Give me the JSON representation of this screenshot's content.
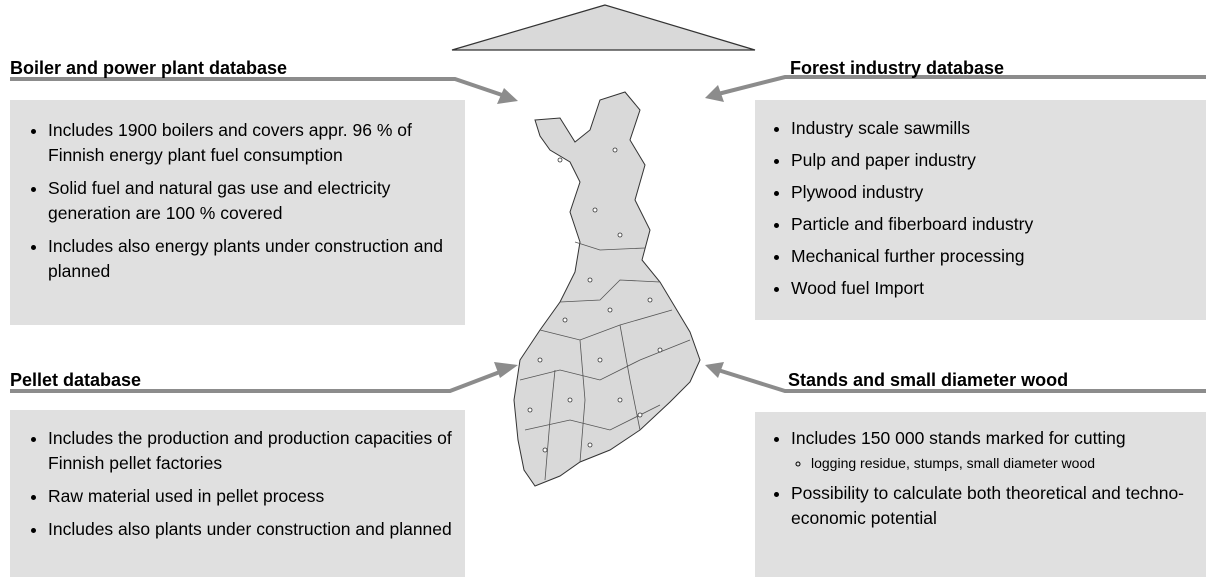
{
  "panels": [
    {
      "title": "Boiler and power plant database",
      "items": [
        {
          "text": "Includes 1900 boilers and covers appr. 96 % of Finnish energy plant fuel consumption"
        },
        {
          "text": "Solid fuel and natural gas use and electricity generation are 100 % covered"
        },
        {
          "text": "Includes also energy plants under construction and planned"
        }
      ]
    },
    {
      "title": "Forest industry database",
      "items": [
        {
          "text": "Industry scale sawmills"
        },
        {
          "text": "Pulp and paper industry"
        },
        {
          "text": "Plywood industry"
        },
        {
          "text": "Particle and fiberboard industry"
        },
        {
          "text": "Mechanical further processing"
        },
        {
          "text": "Wood fuel Import"
        }
      ]
    },
    {
      "title": "Pellet database",
      "items": [
        {
          "text": "Includes the production and production capacities of Finnish pellet factories"
        },
        {
          "text": "Raw material used in pellet process"
        },
        {
          "text": "Includes also plants under construction and planned"
        }
      ]
    },
    {
      "title": "Stands and small diameter wood",
      "items": [
        {
          "text": "Includes 150 000 stands marked for cutting",
          "sub": [
            "logging residue, stumps, small diameter wood"
          ]
        },
        {
          "text": "Possibility to calculate both theoretical and techno-economic potential"
        }
      ]
    }
  ]
}
